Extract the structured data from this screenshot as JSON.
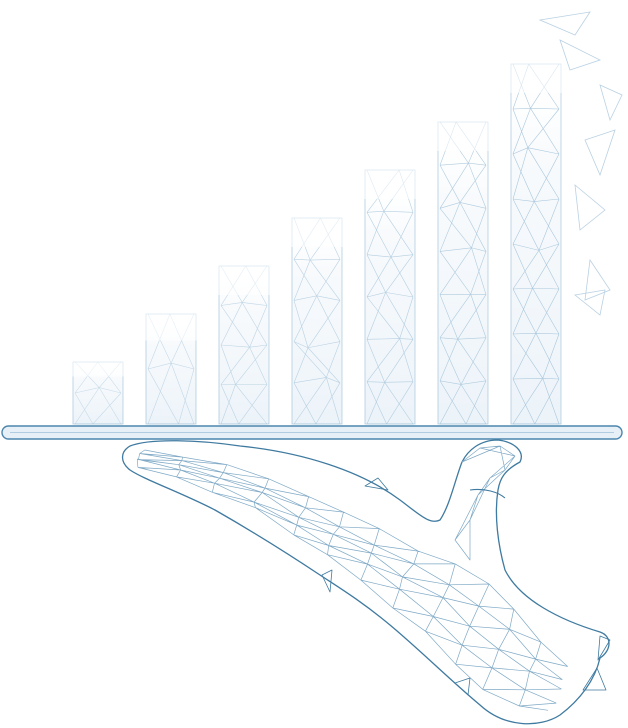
{
  "illustration": {
    "subject": "low-poly-wireframe-hand-holding-tray-with-growing-bars",
    "colors": {
      "hand_stroke": "#3f7aa0",
      "hand_stroke_light": "#7fa9c6",
      "bar_stroke": "#9fc0d8",
      "bar_fill": "#f3f7fb",
      "tray_stroke": "#4c86ad",
      "tray_fill": "#e7f0f7",
      "background": "#ffffff"
    },
    "bars": [
      {
        "level": 1
      },
      {
        "level": 2
      },
      {
        "level": 3
      },
      {
        "level": 4
      },
      {
        "level": 5
      },
      {
        "level": 6
      },
      {
        "level": 7
      }
    ]
  }
}
